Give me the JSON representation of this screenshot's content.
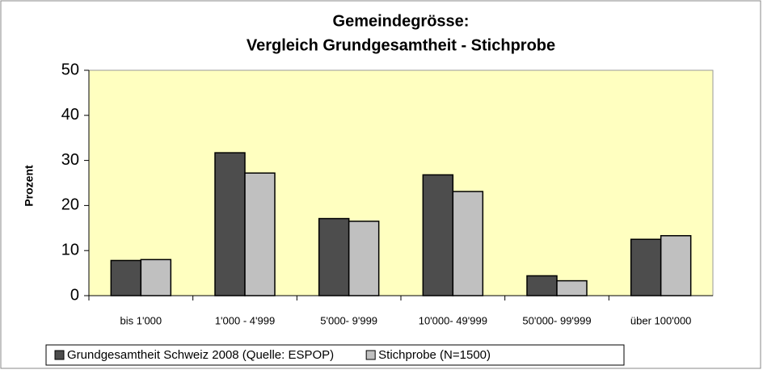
{
  "chart_data": {
    "type": "bar",
    "title": [
      "Gemeindegrösse:",
      "Vergleich Grundgesamtheit - Stichprobe"
    ],
    "y_label": "Prozent",
    "categories": [
      "bis 1'000",
      "1'000 -  4'999",
      "5'000- 9'999",
      "10'000- 49'999",
      "50'000- 99'999",
      "über 100'000"
    ],
    "series": [
      {
        "name": "Grundgesamtheit Schweiz 2008 (Quelle: ESPOP)",
        "color": "#4d4d4d",
        "values": [
          7.8,
          31.7,
          17.1,
          26.8,
          4.4,
          12.5
        ]
      },
      {
        "name": "Stichprobe (N=1500)",
        "color": "#c0c0c0",
        "values": [
          8.0,
          27.2,
          16.5,
          23.1,
          3.3,
          13.3
        ]
      }
    ],
    "ylim": [
      0,
      50
    ],
    "yticks": [
      0,
      10,
      20,
      30,
      40,
      50
    ],
    "grid": false,
    "legend": "bottom"
  }
}
